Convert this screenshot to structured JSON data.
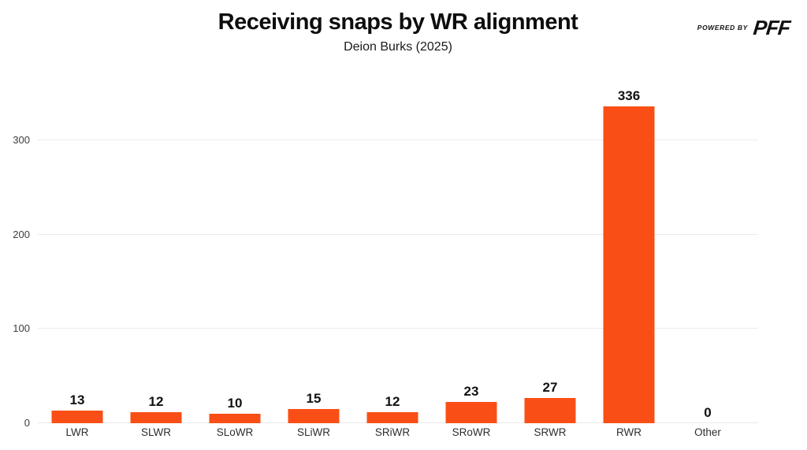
{
  "header": {
    "title": "Receiving snaps by WR alignment",
    "subtitle": "Deion Burks (2025)"
  },
  "branding": {
    "powered_by": "POWERED BY",
    "brand": "PFF"
  },
  "chart_data": {
    "type": "bar",
    "title": "Receiving snaps by WR alignment",
    "subtitle": "Deion Burks (2025)",
    "categories": [
      "LWR",
      "SLWR",
      "SLoWR",
      "SLiWR",
      "SRiWR",
      "SRoWR",
      "SRWR",
      "RWR",
      "Other"
    ],
    "values": [
      13,
      12,
      10,
      15,
      12,
      23,
      27,
      336,
      0
    ],
    "value_labels": true,
    "xlabel": "",
    "ylabel": "",
    "yticks": [
      0,
      100,
      200,
      300
    ],
    "ylim": [
      0,
      357
    ],
    "grid": "horizontal",
    "legend": "none",
    "bar_color": "#F94F16",
    "gridline_color": "#ebebeb",
    "tick_label_color": "#3d3d3d"
  }
}
